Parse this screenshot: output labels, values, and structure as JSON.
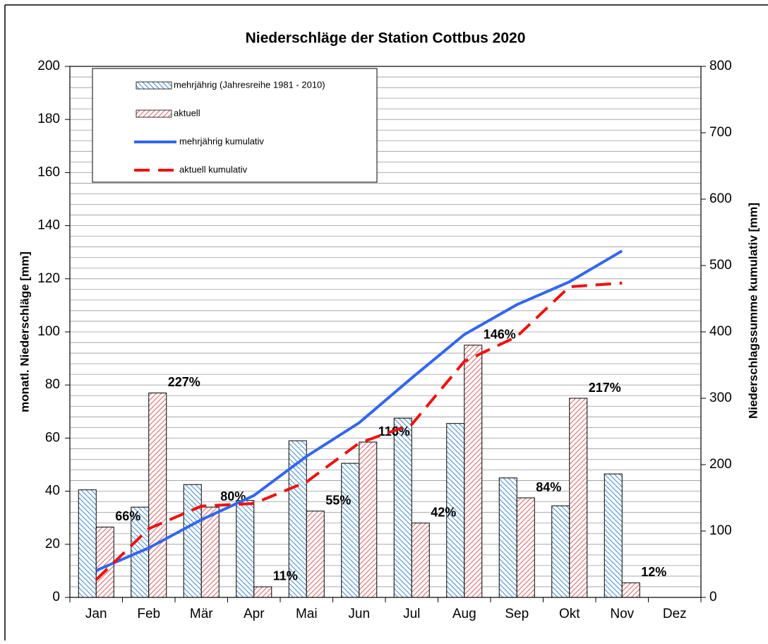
{
  "chart_data": {
    "type": "bar-line",
    "title": "Niederschläge der Station Cottbus 2020",
    "y_label": "monatl. Niederschläge [mm]",
    "y2_label": "Niederschlagssumme kumulativ [mm]",
    "categories": [
      "Jan",
      "Feb",
      "Mär",
      "Apr",
      "Mai",
      "Jun",
      "Jul",
      "Aug",
      "Sep",
      "Okt",
      "Nov",
      "Dez"
    ],
    "series": [
      {
        "name": "mehrjährig (Jahresreihe 1981 - 2010)",
        "type": "bar",
        "color": "#4a8fd0",
        "values": [
          40.5,
          34,
          42.5,
          36.5,
          59,
          50.5,
          67.5,
          65.5,
          45,
          34.5,
          46.5,
          null
        ]
      },
      {
        "name": "aktuell",
        "type": "bar",
        "color": "#d86a6a",
        "values": [
          26.5,
          77,
          34,
          4,
          32.5,
          58.5,
          28,
          95,
          37.5,
          75,
          5.5,
          null
        ],
        "annotations": [
          "66%",
          "227%",
          "80%",
          "11%",
          "55%",
          "116%",
          "42%",
          "146%",
          "84%",
          "217%",
          "12%",
          null
        ]
      },
      {
        "name": "mehrjährig kumulativ",
        "type": "line",
        "axis": "y2",
        "color": "#3366ee",
        "linestyle": "solid",
        "values": [
          40.5,
          74.5,
          117,
          153.5,
          212.5,
          263,
          330.5,
          396,
          441,
          475.5,
          522,
          null
        ]
      },
      {
        "name": "aktuell kumulativ",
        "type": "line",
        "axis": "y2",
        "color": "#ee1111",
        "linestyle": "dashed",
        "values": [
          26.5,
          103.5,
          137.5,
          141.5,
          174,
          232.5,
          260.5,
          355.5,
          393,
          468,
          473.5,
          null
        ]
      }
    ],
    "ylim": [
      0,
      200
    ],
    "yticks": [
      0,
      20,
      40,
      60,
      80,
      100,
      120,
      140,
      160,
      180,
      200
    ],
    "y2lim": [
      0,
      800
    ],
    "y2ticks": [
      0,
      100,
      200,
      300,
      400,
      500,
      600,
      700,
      800
    ],
    "yminorticks": [
      4,
      8,
      12,
      16,
      20,
      24,
      28,
      32,
      36,
      40,
      44,
      48,
      52,
      56,
      60,
      64,
      68,
      72,
      76,
      80,
      84,
      88,
      92,
      96,
      100,
      104,
      108,
      112,
      116,
      120,
      124,
      128,
      132,
      136,
      140,
      144,
      148,
      152,
      156,
      160,
      164,
      168,
      172,
      176,
      180,
      184,
      188,
      192,
      196
    ],
    "grid": true,
    "legend": "upper left"
  }
}
